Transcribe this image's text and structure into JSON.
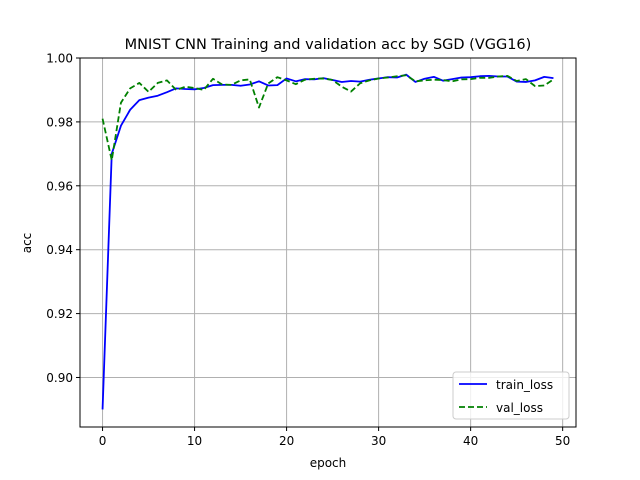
{
  "chart_data": {
    "type": "line",
    "title": "MNIST CNN Training and validation acc by SGD (VGG16)",
    "xlabel": "epoch",
    "ylabel": "acc",
    "xlim": [
      -2.45,
      51.45
    ],
    "ylim": [
      0.8845,
      1.0
    ],
    "x_ticks": [
      0,
      10,
      20,
      30,
      40,
      50
    ],
    "y_ticks": [
      0.9,
      0.92,
      0.94,
      0.96,
      0.98,
      1.0
    ],
    "x_tick_labels": [
      "0",
      "10",
      "20",
      "30",
      "40",
      "50"
    ],
    "y_tick_labels": [
      "0.90",
      "0.92",
      "0.94",
      "0.96",
      "0.98",
      "1.00"
    ],
    "grid": true,
    "legend_position": "lower-right",
    "x": [
      0,
      1,
      2,
      3,
      4,
      5,
      6,
      7,
      8,
      9,
      10,
      11,
      12,
      13,
      14,
      15,
      16,
      17,
      18,
      19,
      20,
      21,
      22,
      23,
      24,
      25,
      26,
      27,
      28,
      29,
      30,
      31,
      32,
      33,
      34,
      35,
      36,
      37,
      38,
      39,
      40,
      41,
      42,
      43,
      44,
      45,
      46,
      47,
      48,
      49
    ],
    "series": [
      {
        "name": "train_loss",
        "color": "#0000ff",
        "dash": "solid",
        "values": [
          0.89,
          0.97,
          0.9788,
          0.9838,
          0.9868,
          0.9876,
          0.9882,
          0.9893,
          0.9905,
          0.9903,
          0.9902,
          0.9906,
          0.9915,
          0.9916,
          0.9916,
          0.9913,
          0.9917,
          0.9927,
          0.9914,
          0.9915,
          0.9936,
          0.9927,
          0.9934,
          0.9933,
          0.9937,
          0.9931,
          0.9925,
          0.9928,
          0.9926,
          0.9932,
          0.9936,
          0.994,
          0.9939,
          0.9948,
          0.9925,
          0.9935,
          0.9941,
          0.9929,
          0.9934,
          0.9939,
          0.994,
          0.9943,
          0.9944,
          0.9942,
          0.9942,
          0.9926,
          0.9925,
          0.993,
          0.9941,
          0.9937
        ]
      },
      {
        "name": "val_loss",
        "color": "#008000",
        "dash": "dashed",
        "values": [
          0.981,
          0.968,
          0.986,
          0.9905,
          0.9922,
          0.9894,
          0.9922,
          0.993,
          0.99,
          0.991,
          0.9906,
          0.99,
          0.9935,
          0.9917,
          0.9916,
          0.993,
          0.9933,
          0.9845,
          0.992,
          0.994,
          0.993,
          0.9918,
          0.9932,
          0.9935,
          0.9936,
          0.9931,
          0.991,
          0.9895,
          0.9921,
          0.993,
          0.9936,
          0.9939,
          0.9943,
          0.9946,
          0.9927,
          0.993,
          0.9932,
          0.9931,
          0.9927,
          0.9933,
          0.9934,
          0.9938,
          0.9938,
          0.9942,
          0.9944,
          0.9928,
          0.9934,
          0.9912,
          0.9914,
          0.9933
        ]
      }
    ]
  }
}
